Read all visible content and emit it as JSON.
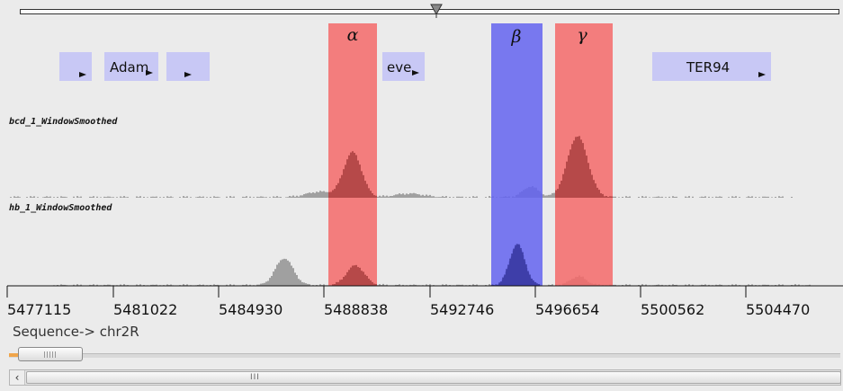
{
  "genes": [
    {
      "id": "gene-a",
      "label": ""
    },
    {
      "id": "adam",
      "label": "Adam"
    },
    {
      "id": "gene-b",
      "label": ""
    },
    {
      "id": "eve",
      "label": "eve"
    },
    {
      "id": "ter94",
      "label": "TER94"
    }
  ],
  "tracks": [
    {
      "label": "bcd_1_WindowSmoothed"
    },
    {
      "label": "hb_1_WindowSmoothed"
    }
  ],
  "regions": [
    {
      "symbol": "α",
      "color": "#f56a6a"
    },
    {
      "symbol": "β",
      "color": "#6464f0"
    },
    {
      "symbol": "γ",
      "color": "#f56a6a"
    }
  ],
  "axis": {
    "tick_labels": [
      "5477115",
      "5481022",
      "5484930",
      "5488838",
      "5492746",
      "5496654",
      "5500562",
      "5504470"
    ]
  },
  "sequence": {
    "label": "Sequence-> chr2R"
  },
  "colors": {
    "background": "#ebebeb",
    "gene_box": "#c8c8f5",
    "signal": "#444444",
    "region_red": "#f56a6a",
    "region_blue": "#6464f0",
    "zoom_accent": "#f0a54a"
  },
  "icons": {
    "overview_pointer": "triangle-down-icon",
    "gene_strand": "arrow-icon",
    "scroll_left": "chevron-left-icon"
  }
}
